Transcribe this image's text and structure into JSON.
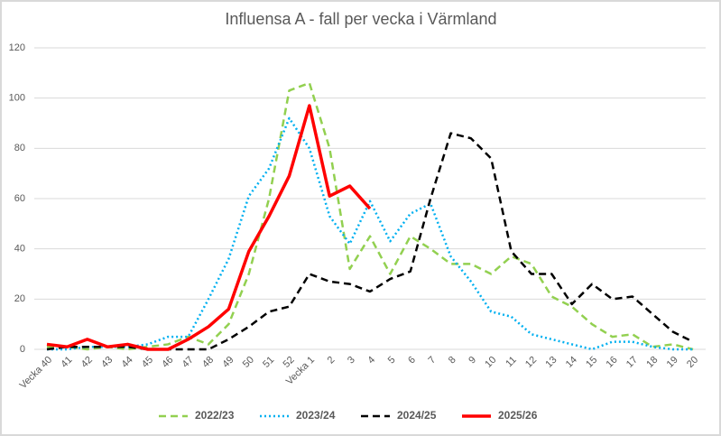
{
  "chart_data": {
    "type": "line",
    "title": "Influensa A - fall per vecka i Värmland",
    "categories": [
      "Vecka 40",
      "41",
      "42",
      "43",
      "44",
      "45",
      "46",
      "47",
      "48",
      "49",
      "50",
      "51",
      "52",
      "Vecka 1",
      "2",
      "3",
      "4",
      "5",
      "6",
      "7",
      "8",
      "9",
      "10",
      "11",
      "12",
      "13",
      "14",
      "15",
      "16",
      "17",
      "18",
      "19",
      "20"
    ],
    "series": [
      {
        "name": "2022/23",
        "color": "#92d050",
        "style": "dashed",
        "values": [
          1,
          1,
          0,
          1,
          0,
          1,
          2,
          5,
          2,
          10,
          30,
          60,
          103,
          106,
          80,
          32,
          45,
          30,
          45,
          40,
          34,
          34,
          30,
          37,
          34,
          21,
          17,
          10,
          5,
          6,
          1,
          2,
          0
        ]
      },
      {
        "name": "2023/24",
        "color": "#00b0f0",
        "style": "dotted",
        "values": [
          0,
          0,
          1,
          1,
          1,
          2,
          5,
          5,
          20,
          36,
          61,
          72,
          92,
          80,
          53,
          42,
          59,
          43,
          54,
          58,
          37,
          27,
          15,
          13,
          6,
          4,
          2,
          0,
          3,
          3,
          1,
          0,
          0
        ]
      },
      {
        "name": "2024/25",
        "color": "#000000",
        "style": "dashed",
        "values": [
          0,
          1,
          1,
          1,
          1,
          0,
          0,
          0,
          0,
          4,
          9,
          15,
          17,
          30,
          27,
          26,
          23,
          28,
          31,
          60,
          86,
          84,
          76,
          39,
          30,
          30,
          18,
          26,
          20,
          21,
          14,
          7,
          3
        ]
      },
      {
        "name": "2025/26",
        "color": "#ff0000",
        "style": "solid",
        "values": [
          2,
          1,
          4,
          1,
          2,
          0,
          0,
          4,
          9,
          16,
          39,
          53,
          69,
          97,
          61,
          65,
          56,
          null,
          null,
          null,
          null,
          null,
          null,
          null,
          null,
          null,
          null,
          null,
          null,
          null,
          null,
          null,
          null
        ]
      }
    ],
    "ylim": [
      0,
      120
    ],
    "yticks": [
      0,
      20,
      40,
      60,
      80,
      100,
      120
    ],
    "grid": true,
    "legend": "bottom"
  }
}
